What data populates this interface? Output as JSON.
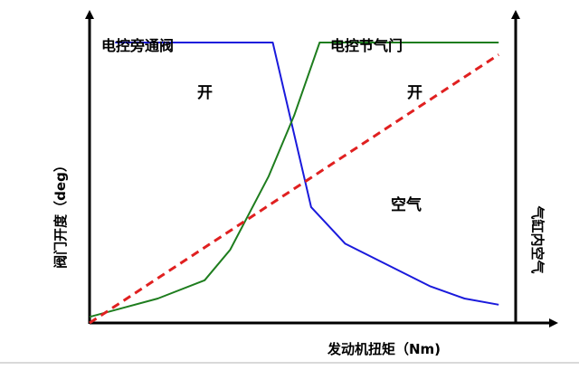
{
  "chart_data": {
    "type": "line",
    "title": "",
    "ylabel_left": "阀门开度（deg）",
    "ylabel_right": "气缸内空气",
    "xlabel": "发动机扭矩（Nm)",
    "xlim": [
      0,
      100
    ],
    "ylim": [
      0,
      100
    ],
    "grid": false,
    "legend": "none",
    "annotations": {
      "bypass_label": "电控旁通阀",
      "throttle_label": "电控节气门",
      "bypass_open": "开",
      "throttle_open": "开",
      "air_label": "空气"
    },
    "series": [
      {
        "color": "#1a1adc",
        "style": "solid",
        "x": [
          6,
          43,
          52,
          60,
          70,
          80,
          88,
          96
        ],
        "y": [
          92,
          92,
          38,
          26,
          19,
          12,
          8,
          6
        ]
      },
      {
        "color": "#1e7d1e",
        "style": "solid",
        "x": [
          0,
          16,
          27,
          33,
          42,
          48,
          54,
          96
        ],
        "y": [
          2,
          8,
          14,
          24,
          48,
          68,
          92,
          92
        ]
      },
      {
        "color": "#e02020",
        "style": "dashed",
        "x": [
          0,
          96
        ],
        "y": [
          0,
          88
        ]
      }
    ]
  }
}
